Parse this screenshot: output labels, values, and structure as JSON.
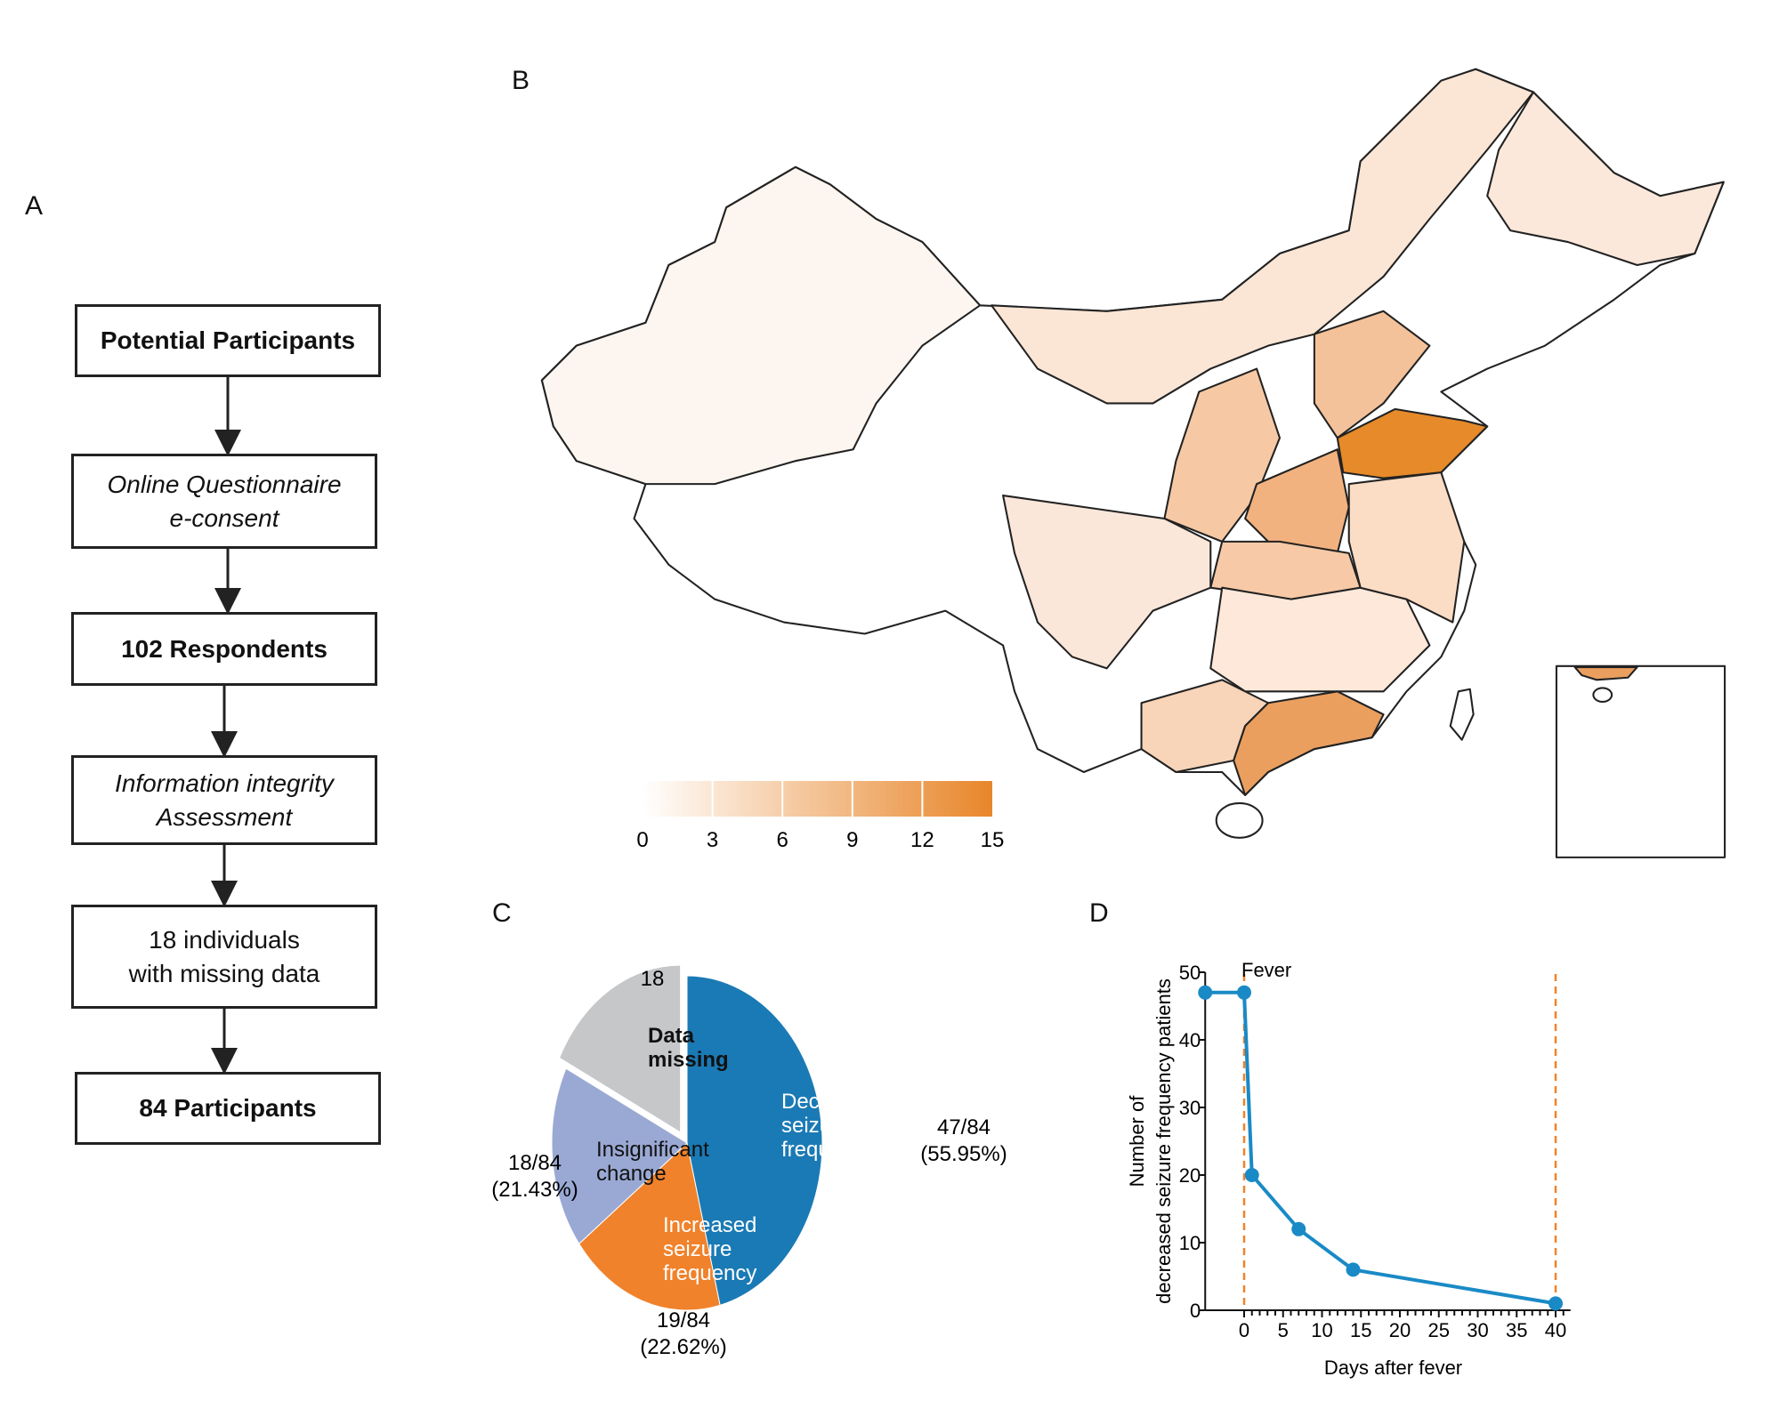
{
  "panels": {
    "a": "A",
    "b": "B",
    "c": "C",
    "d": "D"
  },
  "flowchart": {
    "steps": [
      {
        "lines": [
          "Potential Participants"
        ],
        "style": "bold"
      },
      {
        "lines": [
          "Online Questionnaire",
          "e-consent"
        ],
        "style": "italic"
      },
      {
        "lines": [
          "102 Respondents"
        ],
        "style": "bold"
      },
      {
        "lines": [
          "Information integrity",
          "Assessment"
        ],
        "style": "italic"
      },
      {
        "lines": [
          "18 individuals",
          "with missing data"
        ],
        "style": "normal"
      },
      {
        "lines": [
          "84 Participants"
        ],
        "style": "bold"
      }
    ]
  },
  "map": {
    "colorbar": {
      "ticks": [
        "0",
        "3",
        "6",
        "9",
        "12",
        "15"
      ],
      "min": 0,
      "max": 15,
      "color_low": "#ffffff",
      "color_high": "#e8862a"
    },
    "region_colors": {
      "xinjiang": "#fdf6f0",
      "inner_mongolia": "#fbe6d6",
      "heilongjiang": "#fbe8da",
      "shaanxi": "#f6c9a4",
      "hebei": "#f4c29a",
      "shandong": "#e68a2a",
      "henan": "#f2b27f",
      "hubei": "#f7c9a6",
      "sichuan": "#fbe7da",
      "south_central": "#fde8d9",
      "guangdong": "#eb9f5f",
      "guangxi": "#f8d4b8",
      "east_coast": "#fbdcc5"
    }
  },
  "chart_data": [
    {
      "type": "pie",
      "slices": [
        {
          "label": "Decreased seizure frequency",
          "value": 47,
          "annotation": [
            "47/84",
            "(55.95%)"
          ],
          "color": "#1a7ab5",
          "text_color": "#ffffff"
        },
        {
          "label": "Increased seizure frequency",
          "value": 19,
          "annotation": [
            "19/84",
            "(22.62%)"
          ],
          "color": "#f0822b",
          "text_color": "#ffffff"
        },
        {
          "label": "Insignificant change",
          "value": 18,
          "annotation": [
            "18/84",
            "(21.43%)"
          ],
          "color": "#9aa9d4",
          "text_color": "#111111"
        },
        {
          "label": "Data missing",
          "value": 18,
          "annotation": [
            "18"
          ],
          "color": "#c6c7c9",
          "text_color": "#111111",
          "exploded": true
        }
      ]
    },
    {
      "type": "line",
      "xlabel": "Days after fever",
      "ylabel": [
        "Number of",
        "decreased seizure frequency patients"
      ],
      "x": [
        -5,
        0,
        1,
        7,
        14,
        40
      ],
      "y": [
        47,
        47,
        20,
        12,
        6,
        1
      ],
      "xlim": [
        -5,
        41
      ],
      "ylim": [
        0,
        50
      ],
      "xticks": [
        0,
        5,
        10,
        15,
        20,
        25,
        30,
        35,
        40
      ],
      "yticks": [
        0,
        10,
        20,
        30,
        40,
        50
      ],
      "color": "#1a8ac6",
      "vlines": [
        0,
        40
      ],
      "vline_color": "#f0822b",
      "annotation": "Fever"
    }
  ]
}
